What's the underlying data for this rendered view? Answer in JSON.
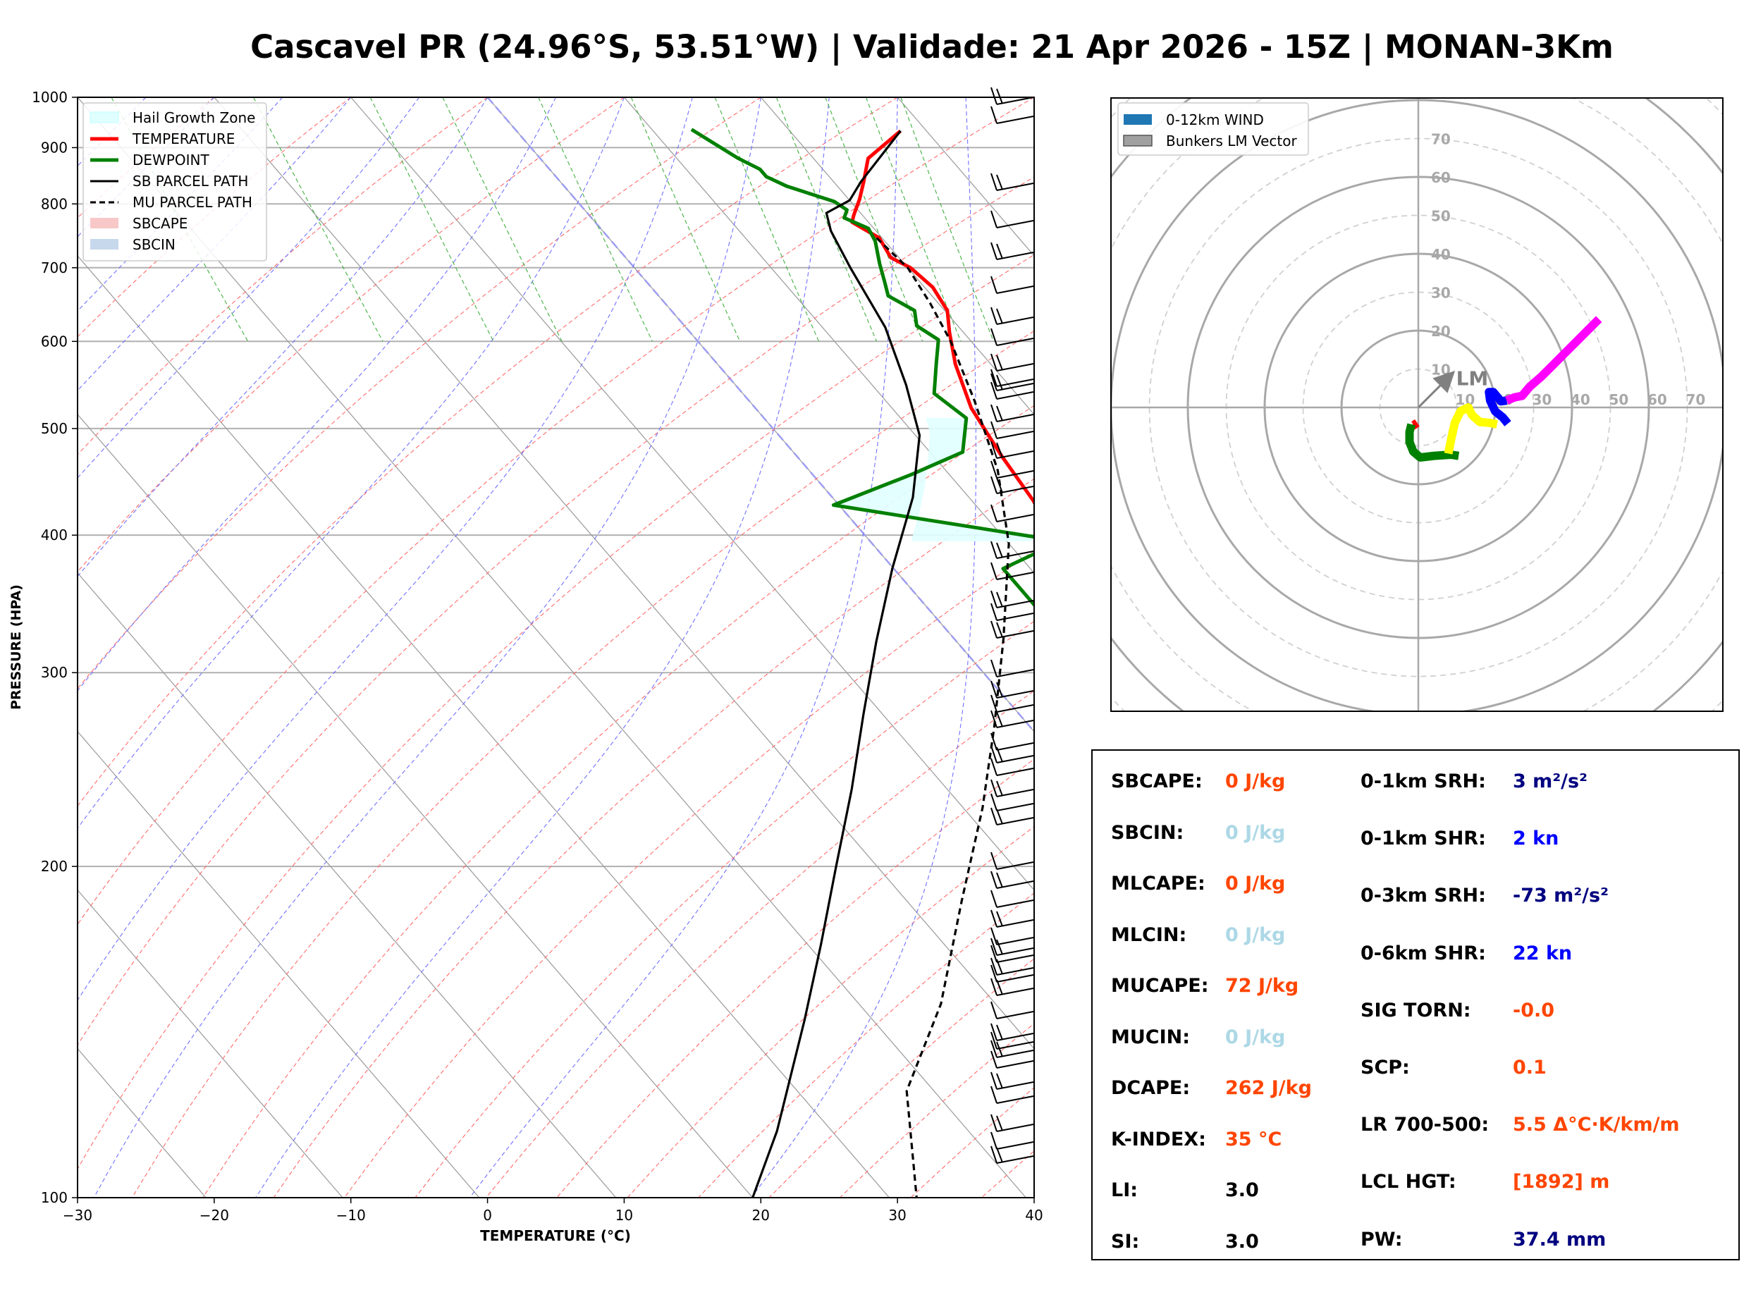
{
  "title": "Cascavel PR (24.96°S, 53.51°W) | Validade: 21 Apr 2026 - 15Z | MONAN-3Km",
  "skewt": {
    "xlabel": "TEMPERATURE (°C)",
    "ylabel": "PRESSURE (HPA)",
    "x_ticks": [
      "−30",
      "−20",
      "−10",
      "0",
      "10",
      "20",
      "30",
      "40"
    ],
    "y_ticks": [
      "100",
      "200",
      "300",
      "400",
      "500",
      "600",
      "700",
      "800",
      "900",
      "1000"
    ],
    "legend": [
      {
        "label": "Hail Growth Zone",
        "color": "#e0ffff"
      },
      {
        "label": "TEMPERATURE",
        "color": "#ff0000"
      },
      {
        "label": "DEWPOINT",
        "color": "#008000"
      },
      {
        "label": "SB PARCEL PATH",
        "color": "#000000"
      },
      {
        "label": "MU PARCEL PATH",
        "color": "#000000"
      },
      {
        "label": "SBCAPE",
        "color": "#f8c8c8"
      },
      {
        "label": "SBCIN",
        "color": "#c8d8ec"
      }
    ]
  },
  "chart_data": [
    {
      "type": "line",
      "subtype": "skew-t log-p",
      "xlim": [
        -30,
        40
      ],
      "ylim": [
        1000,
        100
      ],
      "y_scale": "log",
      "grid": true,
      "legend_position": "top-left",
      "series": [
        {
          "name": "TEMPERATURE",
          "color": "#ff0000",
          "points": [
            [
              28.1,
              932
            ],
            [
              24,
              880
            ],
            [
              22.2,
              838
            ],
            [
              20.8,
              808
            ],
            [
              19.4,
              782
            ],
            [
              18.8,
              770
            ],
            [
              19.8,
              745
            ],
            [
              19.4,
              715
            ],
            [
              20.2,
              700
            ],
            [
              20.6,
              672
            ],
            [
              20.2,
              640
            ],
            [
              19.0,
              612
            ],
            [
              17.4,
              572
            ],
            [
              15.8,
              522
            ],
            [
              15.0,
              472
            ],
            [
              14.5,
              430
            ],
            [
              13.4,
              390
            ],
            [
              11.2,
              344
            ],
            [
              8.2,
              293
            ],
            [
              5.0,
              255
            ],
            [
              1.8,
              226
            ],
            [
              -1.0,
              203
            ],
            [
              -1.8,
              183
            ],
            [
              -1.8,
              162
            ],
            [
              0.6,
              146
            ],
            [
              0.6,
              125
            ],
            [
              4.0,
              110
            ],
            [
              6.0,
              100
            ]
          ]
        },
        {
          "name": "DEWPOINT",
          "color": "#008000",
          "points": [
            [
              12.9,
              935
            ],
            [
              14.5,
              880
            ],
            [
              15.4,
              860
            ],
            [
              15.4,
              847
            ],
            [
              16.3,
              830
            ],
            [
              18.8,
              804
            ],
            [
              19.2,
              790
            ],
            [
              18.5,
              777
            ],
            [
              19.6,
              760
            ],
            [
              19.3,
              740
            ],
            [
              18.2,
              706
            ],
            [
              17.4,
              679
            ],
            [
              16.8,
              660
            ],
            [
              17.8,
              640
            ],
            [
              17.0,
              620
            ],
            [
              17.7,
              602
            ],
            [
              16.0,
              572
            ],
            [
              14.0,
              538
            ],
            [
              14.8,
              511
            ],
            [
              12.4,
              476
            ],
            [
              7.2,
              454
            ],
            [
              -0.4,
              426
            ],
            [
              14.0,
              395
            ],
            [
              8.0,
              373
            ],
            [
              8.0,
              340
            ],
            [
              8.2,
              309
            ],
            [
              6.6,
              288
            ],
            [
              3.8,
              264
            ],
            [
              -1.2,
              240
            ],
            [
              -5.0,
              210
            ],
            [
              -4.7,
              190
            ],
            [
              -8.4,
              168
            ],
            [
              -10.4,
              152
            ],
            [
              -10.8,
              142
            ],
            [
              -10.4,
              130
            ],
            [
              -10.0,
              118
            ],
            [
              -8.2,
              108
            ],
            [
              -5.3,
              100
            ]
          ]
        },
        {
          "name": "SB PARCEL PATH",
          "color": "#000000",
          "points": [
            [
              28.1,
              932
            ],
            [
              22.0,
              838
            ],
            [
              20.0,
              806
            ],
            [
              17.5,
              785
            ],
            [
              16.7,
              756
            ],
            [
              15.8,
              700
            ],
            [
              14.6,
              618
            ],
            [
              12.5,
              548
            ],
            [
              10.3,
              493
            ],
            [
              5.9,
              433
            ],
            [
              -0.1,
              373
            ],
            [
              -5.9,
              320
            ],
            [
              -11.4,
              275
            ],
            [
              -17.0,
              235
            ],
            [
              -23.0,
              200
            ],
            [
              -29.0,
              170
            ],
            [
              -35.0,
              145
            ],
            [
              -44.0,
              115
            ],
            [
              -50.0,
              100
            ]
          ]
        },
        {
          "name": "MU PARCEL PATH",
          "color": "#000000",
          "dash": true,
          "points": [
            [
              19.6,
              745
            ],
            [
              20.0,
              700
            ],
            [
              19.4,
              650
            ],
            [
              18.5,
              600
            ],
            [
              16.5,
              530
            ],
            [
              13.8,
              458
            ],
            [
              10.0,
              393
            ],
            [
              3.6,
              322
            ],
            [
              -2.6,
              268
            ],
            [
              -8.6,
              226
            ],
            [
              -16.0,
              186
            ],
            [
              -24.0,
              150
            ],
            [
              -32.0,
              125
            ],
            [
              -38.0,
              100
            ]
          ]
        }
      ],
      "wind_barbs_shown": true
    },
    {
      "type": "scatter",
      "subtype": "hodograph",
      "legend": [
        "0-12km WIND",
        "Bunkers LM Vector"
      ],
      "legend_position": "top-left",
      "ring_labels": [
        "10",
        "20",
        "30",
        "40",
        "50",
        "60",
        "70"
      ],
      "lm_label": "LM",
      "lm_vector": [
        8,
        8
      ],
      "segments": [
        {
          "color": "#ff0000",
          "points": [
            [
              -0.3,
              -4
            ],
            [
              -1.2,
              -4.6
            ],
            [
              -1.5,
              -4.4
            ]
          ]
        },
        {
          "color": "#008000",
          "points": [
            [
              -1.8,
              -4.4
            ],
            [
              -2.3,
              -6.4
            ],
            [
              -2.3,
              -9
            ],
            [
              -1.3,
              -11.5
            ],
            [
              0.5,
              -13
            ],
            [
              4,
              -12.6
            ],
            [
              8.5,
              -12.3
            ],
            [
              10.5,
              -12.6
            ]
          ]
        },
        {
          "color": "#ffff00",
          "points": [
            [
              7.8,
              -12
            ],
            [
              8.6,
              -8
            ],
            [
              9.5,
              -4
            ],
            [
              11,
              -1
            ],
            [
              13,
              0
            ],
            [
              14,
              -2
            ],
            [
              16,
              -3.8
            ],
            [
              18.5,
              -4
            ],
            [
              20.5,
              -4.4
            ]
          ]
        },
        {
          "color": "#0000ff",
          "points": [
            [
              23.3,
              -4.2
            ],
            [
              22,
              -2.6
            ],
            [
              20,
              -1
            ],
            [
              18.7,
              1.8
            ],
            [
              18.4,
              4
            ],
            [
              19.5,
              4
            ],
            [
              21.5,
              1.6
            ],
            [
              23,
              1.8
            ]
          ]
        },
        {
          "color": "#ff00ff",
          "points": [
            [
              23,
              1.8
            ],
            [
              25,
              2.6
            ],
            [
              27,
              3
            ],
            [
              29,
              5.4
            ],
            [
              32,
              8
            ],
            [
              35,
              11
            ],
            [
              38,
              14
            ],
            [
              41,
              17
            ],
            [
              44,
              20
            ],
            [
              47,
              23
            ]
          ]
        }
      ]
    }
  ],
  "stats": {
    "left": [
      {
        "label": "SBCAPE:",
        "value": "0 J/kg",
        "color": "#ff4500"
      },
      {
        "label": "SBCIN:",
        "value": "0 J/kg",
        "color": "#add8e6"
      },
      {
        "label": "MLCAPE:",
        "value": "0 J/kg",
        "color": "#ff4500"
      },
      {
        "label": "MLCIN:",
        "value": "0 J/kg",
        "color": "#add8e6"
      },
      {
        "label": "MUCAPE:",
        "value": "72 J/kg",
        "color": "#ff4500"
      },
      {
        "label": "MUCIN:",
        "value": "0 J/kg",
        "color": "#add8e6"
      },
      {
        "label": "DCAPE:",
        "value": "262 J/kg",
        "color": "#ff4500"
      },
      {
        "label": "K-INDEX:",
        "value": "35 °C",
        "color": "#ff4500"
      },
      {
        "label": "LI:",
        "value": "3.0",
        "color": "#000000"
      },
      {
        "label": "SI:",
        "value": "3.0",
        "color": "#000000"
      }
    ],
    "right": [
      {
        "label": "0-1km SRH:",
        "value": "3 m²/s²",
        "color": "#000080"
      },
      {
        "label": "0-1km SHR:",
        "value": "2 kn",
        "color": "#0000ff"
      },
      {
        "label": "0-3km SRH:",
        "value": "-73 m²/s²",
        "color": "#000080"
      },
      {
        "label": "0-6km SHR:",
        "value": "22 kn",
        "color": "#0000ff"
      },
      {
        "label": "SIG TORN:",
        "value": "-0.0",
        "color": "#ff4500"
      },
      {
        "label": "SCP:",
        "value": "0.1",
        "color": "#ff4500"
      },
      {
        "label": "LR 700-500:",
        "value": "5.5 Δ°C·K/km/m",
        "color": "#ff4500"
      },
      {
        "label": "LCL HGT:",
        "value": "[1892] m",
        "color": "#ff4500"
      },
      {
        "label": "PW:",
        "value": "37.4 mm",
        "color": "#000080"
      }
    ]
  }
}
